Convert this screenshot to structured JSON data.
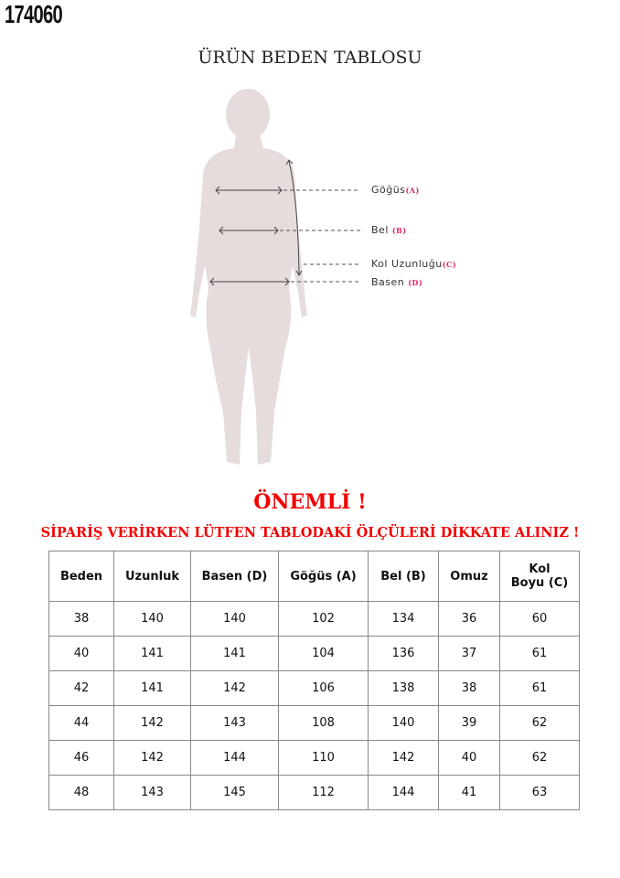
{
  "product_code": "174060",
  "title": "ÜRÜN BEDEN TABLOSU",
  "figure": {
    "silhouette_color": "#e6dcdc",
    "labels": [
      {
        "text": "Göğüs",
        "tag": "(A)"
      },
      {
        "text": "Bel",
        "tag": "(B)"
      },
      {
        "text": "Kol Uzunluğu",
        "tag": "(C)"
      },
      {
        "text": "Basen",
        "tag": "(D)"
      }
    ]
  },
  "important": "ÖNEMLİ !",
  "warning": "SİPARİŞ VERİRKEN LÜTFEN TABLODAKİ ÖLÇÜLERİ DİKKATE ALINIZ !",
  "table": {
    "headers": [
      "Beden",
      "Uzunluk",
      "Basen (D)",
      "Göğüs (A)",
      "Bel (B)",
      "Omuz",
      "Kol\nBoyu (C)"
    ],
    "rows": [
      [
        "38",
        "140",
        "140",
        "102",
        "134",
        "36",
        "60"
      ],
      [
        "40",
        "141",
        "141",
        "104",
        "136",
        "37",
        "61"
      ],
      [
        "42",
        "141",
        "142",
        "106",
        "138",
        "38",
        "61"
      ],
      [
        "44",
        "142",
        "143",
        "108",
        "140",
        "39",
        "62"
      ],
      [
        "46",
        "142",
        "144",
        "110",
        "142",
        "40",
        "62"
      ],
      [
        "48",
        "143",
        "145",
        "112",
        "144",
        "41",
        "63"
      ]
    ]
  }
}
